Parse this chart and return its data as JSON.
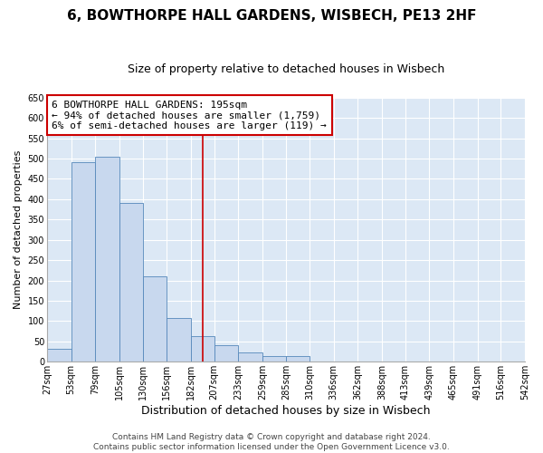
{
  "title": "6, BOWTHORPE HALL GARDENS, WISBECH, PE13 2HF",
  "subtitle": "Size of property relative to detached houses in Wisbech",
  "xlabel": "Distribution of detached houses by size in Wisbech",
  "ylabel": "Number of detached properties",
  "bar_color": "#c8d8ee",
  "bar_edge_color": "#5588bb",
  "background_color": "#dce8f5",
  "grid_color": "#ffffff",
  "bins": [
    27,
    53,
    79,
    105,
    130,
    156,
    182,
    207,
    233,
    259,
    285,
    310,
    336,
    362,
    388,
    413,
    439,
    465,
    491,
    516,
    542
  ],
  "values": [
    32,
    492,
    504,
    390,
    210,
    107,
    62,
    41,
    22,
    13,
    13,
    1,
    0,
    0,
    0,
    1,
    0,
    0,
    0,
    1
  ],
  "tick_labels": [
    "27sqm",
    "53sqm",
    "79sqm",
    "105sqm",
    "130sqm",
    "156sqm",
    "182sqm",
    "207sqm",
    "233sqm",
    "259sqm",
    "285sqm",
    "310sqm",
    "336sqm",
    "362sqm",
    "388sqm",
    "413sqm",
    "439sqm",
    "465sqm",
    "491sqm",
    "516sqm",
    "542sqm"
  ],
  "ylim": [
    0,
    650
  ],
  "yticks": [
    0,
    50,
    100,
    150,
    200,
    250,
    300,
    350,
    400,
    450,
    500,
    550,
    600,
    650
  ],
  "property_line_x": 195,
  "property_line_color": "#cc0000",
  "annotation_line1": "6 BOWTHORPE HALL GARDENS: 195sqm",
  "annotation_line2": "← 94% of detached houses are smaller (1,759)",
  "annotation_line3": "6% of semi-detached houses are larger (119) →",
  "annotation_box_color": "#ffffff",
  "annotation_box_edge_color": "#cc0000",
  "footer_text": "Contains HM Land Registry data © Crown copyright and database right 2024.\nContains public sector information licensed under the Open Government Licence v3.0.",
  "title_fontsize": 11,
  "subtitle_fontsize": 9,
  "xlabel_fontsize": 9,
  "ylabel_fontsize": 8,
  "tick_fontsize": 7,
  "annotation_fontsize": 8,
  "footer_fontsize": 6.5
}
